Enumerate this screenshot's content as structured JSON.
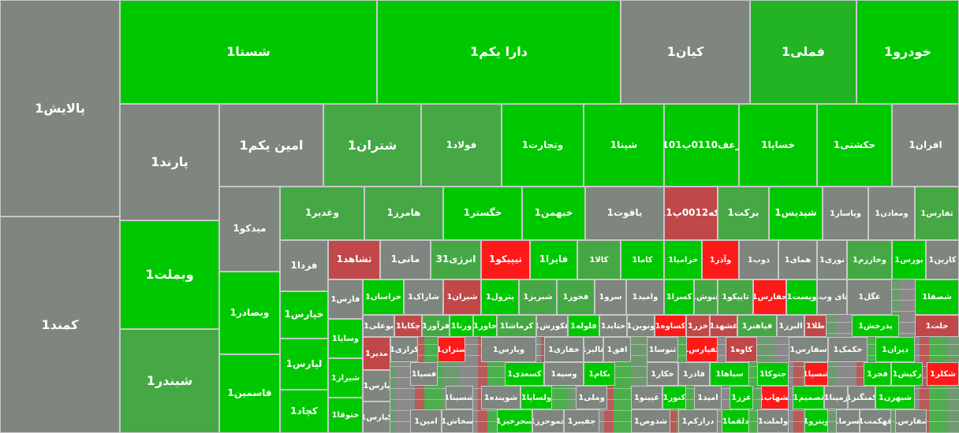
{
  "tiles": [
    {
      "label": "پالایش1",
      "color": "#7f857f"
    },
    {
      "label": "کمند1",
      "color": "#7f857f"
    },
    {
      "label": "شستا1",
      "color": "#00c800"
    },
    {
      "label": "دارا یکم1",
      "color": "#00c800"
    },
    {
      "label": "کیان1",
      "color": "#7f857f"
    },
    {
      "label": "فملی1",
      "color": "#22b422"
    },
    {
      "label": "خودرو1",
      "color": "#00c800"
    },
    {
      "label": "پارند1",
      "color": "#7f857f"
    },
    {
      "label": "امین یکم1",
      "color": "#7f857f"
    },
    {
      "label": "شتران1",
      "color": "#45a845"
    },
    {
      "label": "فولاد1",
      "color": "#45a845"
    },
    {
      "label": "وتجارت1",
      "color": "#00c800"
    },
    {
      "label": "شپنا1",
      "color": "#00c800"
    },
    {
      "label": "زعف0110پ101",
      "color": "#00c800"
    },
    {
      "label": "خساپا1",
      "color": "#00c800"
    },
    {
      "label": "حکشتی1",
      "color": "#00c800"
    },
    {
      "label": "افران1",
      "color": "#7f857f"
    },
    {
      "label": "وبملت1",
      "color": "#00c800"
    },
    {
      "label": "شبندر1",
      "color": "#45a845"
    },
    {
      "label": "میدکو1",
      "color": "#7f857f"
    },
    {
      "label": "وبصادر1",
      "color": "#00c800"
    },
    {
      "label": "قاسمین1",
      "color": "#00c800"
    },
    {
      "label": "وغدیر1",
      "color": "#45a845"
    },
    {
      "label": "هامرز1",
      "color": "#45a845"
    },
    {
      "label": "خگستر1",
      "color": "#00c800"
    },
    {
      "label": "خبهمن1",
      "color": "#00c800"
    },
    {
      "label": "یاقوت1",
      "color": "#7f857f"
    },
    {
      "label": "سکه0012پ011",
      "color": "#c04848"
    },
    {
      "label": "برکت1",
      "color": "#45a845"
    },
    {
      "label": "شپدیس1",
      "color": "#00c800"
    },
    {
      "label": "وپاسار1",
      "color": "#7f857f"
    },
    {
      "label": "ومعادن1",
      "color": "#7f857f"
    },
    {
      "label": "ثفارس1",
      "color": "#45a845"
    },
    {
      "label": "فردا1",
      "color": "#7f857f"
    },
    {
      "label": "ثشاهد1",
      "color": "#c04848"
    },
    {
      "label": "مانی1",
      "color": "#7f857f"
    },
    {
      "label": "انرژی31",
      "color": "#45a845"
    },
    {
      "label": "تیپیکو1",
      "color": "#ff1a1a"
    },
    {
      "label": "فایرا1",
      "color": "#00c800"
    },
    {
      "label": "کالا1",
      "color": "#45a845"
    },
    {
      "label": "کاما1",
      "color": "#00c800"
    },
    {
      "label": "خزامیا1",
      "color": "#00c800"
    },
    {
      "label": "وآذر1",
      "color": "#ff1a1a"
    },
    {
      "label": "ذوب1",
      "color": "#7f857f"
    },
    {
      "label": "همای1",
      "color": "#7f857f"
    },
    {
      "label": "نوری1",
      "color": "#7f857f"
    },
    {
      "label": "وخارزم1",
      "color": "#45a845"
    },
    {
      "label": "بورس1",
      "color": "#00c800"
    },
    {
      "label": "کارین1",
      "color": "#7f857f"
    },
    {
      "label": "خپارس1",
      "color": "#00c800"
    },
    {
      "label": "لپارس1",
      "color": "#00c800"
    },
    {
      "label": "کچاد1",
      "color": "#00c800"
    },
    {
      "label": "فارس1",
      "color": "#7f857f"
    },
    {
      "label": "وساپا1",
      "color": "#00c800"
    },
    {
      "label": "شیراز1",
      "color": "#00c800"
    },
    {
      "label": "ختوقا1",
      "color": "#00c800"
    },
    {
      "label": "خراسان1",
      "color": "#00c800"
    },
    {
      "label": "شاراک1",
      "color": "#7f857f"
    },
    {
      "label": "شیران1",
      "color": "#c04848"
    },
    {
      "label": "پترول1",
      "color": "#00c800"
    },
    {
      "label": "شبریز1",
      "color": "#45a845"
    },
    {
      "label": "فخوز1",
      "color": "#45a845"
    },
    {
      "label": "سرو1",
      "color": "#7f857f"
    },
    {
      "label": "وامید1",
      "color": "#7f857f"
    },
    {
      "label": "کسرا1",
      "color": "#00c800"
    },
    {
      "label": "غنوش1",
      "color": "#45a845"
    },
    {
      "label": "تاپیکو1",
      "color": "#45a845"
    },
    {
      "label": "حفارس1",
      "color": "#ff1a1a"
    },
    {
      "label": "وپست1",
      "color": "#00c800"
    },
    {
      "label": "های وب1",
      "color": "#7f857f"
    },
    {
      "label": "غگل1",
      "color": "#7f857f"
    },
    {
      "label": "شصفا1",
      "color": "#00c800"
    },
    {
      "label": "بوعلی1",
      "color": "#7f857f"
    },
    {
      "label": "چکاپا1",
      "color": "#c04848"
    },
    {
      "label": "فرآور1",
      "color": "#45a845"
    },
    {
      "label": "ورنا1",
      "color": "#00c800"
    },
    {
      "label": "خاور1",
      "color": "#00c800"
    },
    {
      "label": "کرماشا1",
      "color": "#45a845"
    },
    {
      "label": "غکورش1",
      "color": "#7f857f"
    },
    {
      "label": "فلوله1",
      "color": "#00c800"
    },
    {
      "label": "حتاید1",
      "color": "#7f857f"
    },
    {
      "label": "ونوین1",
      "color": "#7f857f"
    },
    {
      "label": "کساوه1",
      "color": "#ff1a1a"
    },
    {
      "label": "خزر1",
      "color": "#c04848"
    },
    {
      "label": "غشهد1",
      "color": "#c04848"
    },
    {
      "label": "فپاهنر1",
      "color": "#45a845"
    },
    {
      "label": "البرز1",
      "color": "#7f857f"
    },
    {
      "label": "طلا1",
      "color": "#c04848"
    },
    {
      "label": "پدرخش1",
      "color": "#00c800"
    },
    {
      "label": "خلت1",
      "color": "#c04848"
    },
    {
      "label": "کرازی1",
      "color": "#7f857f"
    },
    {
      "label": "ستران1",
      "color": "#ff1a1a"
    },
    {
      "label": "ویارس1",
      "color": "#7f857f"
    },
    {
      "label": "خفاری1",
      "color": "#7f857f"
    },
    {
      "label": "غالبر1",
      "color": "#7f857f"
    },
    {
      "label": "افق1",
      "color": "#7f857f"
    },
    {
      "label": "ثنوسا1",
      "color": "#7f857f"
    },
    {
      "label": "کفپارس1",
      "color": "#ff1a1a"
    },
    {
      "label": "کاوه1",
      "color": "#c04848"
    },
    {
      "label": "سفارس1",
      "color": "#7f857f"
    },
    {
      "label": "خکمک1",
      "color": "#7f857f"
    },
    {
      "label": "دیران1",
      "color": "#00c800"
    },
    {
      "label": "مدیر1",
      "color": "#c04848"
    },
    {
      "label": "پارس1",
      "color": "#7f857f"
    },
    {
      "label": "کیارس1",
      "color": "#7f857f"
    },
    {
      "label": "فسپا1",
      "color": "#7f857f"
    },
    {
      "label": "کسعدی1",
      "color": "#00c800"
    },
    {
      "label": "وسپه1",
      "color": "#7f857f"
    },
    {
      "label": "بکام1",
      "color": "#00c800"
    },
    {
      "label": "خکار1",
      "color": "#7f857f"
    },
    {
      "label": "فاذر1",
      "color": "#7f857f"
    },
    {
      "label": "سیاها1",
      "color": "#00c800"
    },
    {
      "label": "جتوکا1",
      "color": "#00c800"
    },
    {
      "label": "شسپا1",
      "color": "#ff1a1a"
    },
    {
      "label": "فجر1",
      "color": "#00c800"
    },
    {
      "label": "رکیش1",
      "color": "#00c800"
    },
    {
      "label": "شکلر1",
      "color": "#ff1a1a"
    },
    {
      "label": "شسینا1",
      "color": "#7f857f"
    },
    {
      "label": "شوینده1",
      "color": "#7f857f"
    },
    {
      "label": "ولساپا1",
      "color": "#00c800"
    },
    {
      "label": "وملی1",
      "color": "#7f857f"
    },
    {
      "label": "غپینو1",
      "color": "#7f857f"
    },
    {
      "label": "کنور1",
      "color": "#00c800"
    },
    {
      "label": "امید1",
      "color": "#7f857f"
    },
    {
      "label": "غزر1",
      "color": "#00c800"
    },
    {
      "label": "بشهاب1",
      "color": "#ff1a1a"
    },
    {
      "label": "تصمیم1",
      "color": "#00c800"
    },
    {
      "label": "زمینا1",
      "color": "#7f857f"
    },
    {
      "label": "کمنگنز1",
      "color": "#7f857f"
    },
    {
      "label": "شبهرن1",
      "color": "#00c800"
    },
    {
      "label": "امین1",
      "color": "#7f857f"
    },
    {
      "label": "سخاش1",
      "color": "#7f857f"
    },
    {
      "label": "سحرخیز1",
      "color": "#00c800"
    },
    {
      "label": "خموحرز1",
      "color": "#7f857f"
    },
    {
      "label": "جفیبر1",
      "color": "#7f857f"
    },
    {
      "label": "شدوص1",
      "color": "#7f857f"
    },
    {
      "label": "درازکم1",
      "color": "#7f857f"
    },
    {
      "label": "دلقما1",
      "color": "#00c800"
    },
    {
      "label": "ولملت1",
      "color": "#7f857f"
    },
    {
      "label": "ویترو1",
      "color": "#00c800"
    },
    {
      "label": "لسرما1",
      "color": "#7f857f"
    },
    {
      "label": "قهکمت1",
      "color": "#7f857f"
    },
    {
      "label": "شفارس1",
      "color": "#7f857f"
    }
  ]
}
